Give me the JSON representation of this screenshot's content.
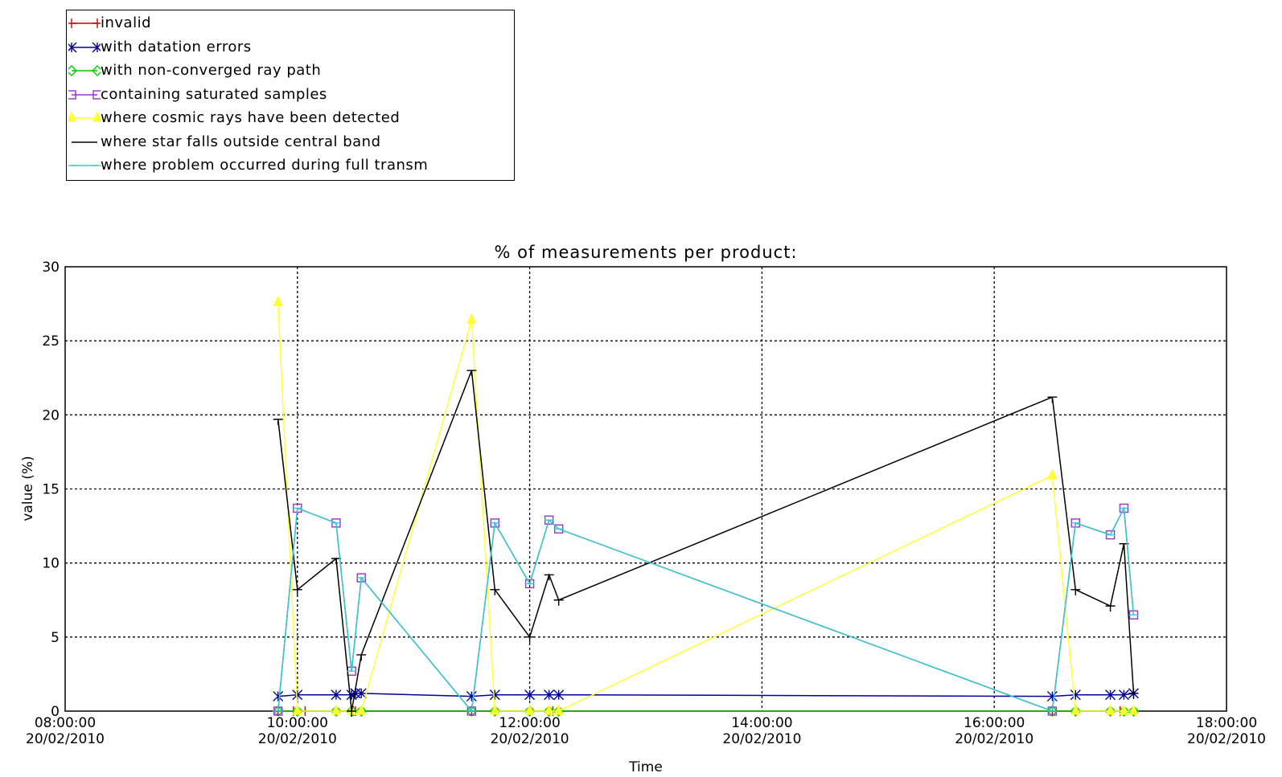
{
  "chart_data": {
    "type": "line",
    "title": "% of measurements per product:",
    "xlabel": "Time",
    "ylabel": "value (%)",
    "ylim": [
      0,
      30
    ],
    "xlim": [
      "20/02/2010 08:00",
      "20/02/2010 18:00"
    ],
    "yticks": [
      "0",
      "5",
      "10",
      "15",
      "20",
      "25",
      "30"
    ],
    "xticks": [
      {
        "time": "08:00:00",
        "date": "20/02/2010"
      },
      {
        "time": "10:00:00",
        "date": "20/02/2010"
      },
      {
        "time": "12:00:00",
        "date": "20/02/2010"
      },
      {
        "time": "14:00:00",
        "date": "20/02/2010"
      },
      {
        "time": "16:00:00",
        "date": "20/02/2010"
      },
      {
        "time": "18:00:00",
        "date": "20/02/2010"
      }
    ],
    "grid": true,
    "legend_position": "top-left",
    "series": [
      {
        "name": "invalid",
        "color": "#cc0000",
        "marker": "plus",
        "points": [
          [
            "09:50",
            0
          ],
          [
            "09:58",
            0
          ],
          [
            "10:00",
            0
          ],
          [
            "10:04",
            0
          ],
          [
            "10:20",
            0
          ],
          [
            "10:28",
            0
          ],
          [
            "10:29",
            0
          ],
          [
            "10:30",
            0
          ],
          [
            "10:33",
            0
          ],
          [
            "11:30",
            0
          ],
          [
            "11:42",
            0
          ],
          [
            "12:00",
            0
          ],
          [
            "12:10",
            0
          ],
          [
            "12:12",
            0
          ],
          [
            "12:15",
            0
          ],
          [
            "16:30",
            0
          ],
          [
            "16:42",
            0
          ],
          [
            "17:00",
            0
          ],
          [
            "17:05",
            0
          ],
          [
            "17:07",
            0
          ],
          [
            "17:12",
            0
          ]
        ]
      },
      {
        "name": "with datation errors",
        "color": "#000099",
        "marker": "x",
        "points": [
          [
            "09:50",
            1.0
          ],
          [
            "10:00",
            1.1
          ],
          [
            "10:20",
            1.1
          ],
          [
            "10:28",
            1.1
          ],
          [
            "10:30",
            1.2
          ],
          [
            "10:33",
            1.2
          ],
          [
            "11:30",
            1.0
          ],
          [
            "11:42",
            1.1
          ],
          [
            "12:00",
            1.1
          ],
          [
            "12:10",
            1.1
          ],
          [
            "12:15",
            1.1
          ],
          [
            "16:30",
            1.0
          ],
          [
            "16:42",
            1.1
          ],
          [
            "17:00",
            1.1
          ],
          [
            "17:07",
            1.1
          ],
          [
            "17:12",
            1.2
          ]
        ]
      },
      {
        "name": "with non-converged ray path",
        "color": "#00cc00",
        "marker": "diamond",
        "points": [
          [
            "09:50",
            0
          ],
          [
            "10:00",
            0
          ],
          [
            "10:20",
            0
          ],
          [
            "10:28",
            0
          ],
          [
            "10:33",
            0
          ],
          [
            "11:30",
            0
          ],
          [
            "11:42",
            0
          ],
          [
            "12:00",
            0
          ],
          [
            "12:10",
            0
          ],
          [
            "12:15",
            0
          ],
          [
            "16:30",
            0
          ],
          [
            "16:42",
            0
          ],
          [
            "17:00",
            0
          ],
          [
            "17:07",
            0
          ],
          [
            "17:12",
            0
          ]
        ]
      },
      {
        "name": "containing saturated samples",
        "color": "#9933cc",
        "marker": "square",
        "points": [
          [
            "09:50",
            0
          ],
          [
            "10:00",
            13.7
          ],
          [
            "10:20",
            12.7
          ],
          [
            "10:28",
            2.7
          ],
          [
            "10:33",
            9.0
          ],
          [
            "11:30",
            0
          ],
          [
            "11:42",
            12.7
          ],
          [
            "12:00",
            8.6
          ],
          [
            "12:10",
            12.9
          ],
          [
            "12:15",
            12.3
          ],
          [
            "16:30",
            0
          ],
          [
            "16:42",
            12.7
          ],
          [
            "17:00",
            11.9
          ],
          [
            "17:07",
            13.7
          ],
          [
            "17:12",
            6.5
          ]
        ]
      },
      {
        "name": "where cosmic rays have been detected",
        "color": "#ffff33",
        "marker": "triangle",
        "points": [
          [
            "09:50",
            27.6
          ],
          [
            "10:00",
            0
          ],
          [
            "10:20",
            0
          ],
          [
            "10:28",
            0
          ],
          [
            "10:33",
            0
          ],
          [
            "11:30",
            26.4
          ],
          [
            "11:42",
            0
          ],
          [
            "12:00",
            0
          ],
          [
            "12:10",
            0
          ],
          [
            "12:15",
            0
          ],
          [
            "16:30",
            15.9
          ],
          [
            "16:42",
            0
          ],
          [
            "17:00",
            0
          ],
          [
            "17:07",
            0
          ],
          [
            "17:12",
            0
          ]
        ]
      },
      {
        "name": "where star falls outside central band",
        "color": "#000000",
        "marker": "tbar",
        "points": [
          [
            "09:50",
            19.7
          ],
          [
            "10:00",
            8.2
          ],
          [
            "10:20",
            10.3
          ],
          [
            "10:28",
            0
          ],
          [
            "10:33",
            3.8
          ],
          [
            "11:30",
            23.0
          ],
          [
            "11:42",
            8.2
          ],
          [
            "12:00",
            5.0
          ],
          [
            "12:10",
            9.2
          ],
          [
            "12:15",
            7.5
          ],
          [
            "16:30",
            21.2
          ],
          [
            "16:42",
            8.2
          ],
          [
            "17:00",
            7.1
          ],
          [
            "17:07",
            11.3
          ],
          [
            "17:12",
            1.2
          ]
        ]
      },
      {
        "name": "where problem occurred during full transm",
        "color": "#33cccc",
        "marker": "tick",
        "points": [
          [
            "09:50",
            0
          ],
          [
            "10:00",
            13.7
          ],
          [
            "10:20",
            12.7
          ],
          [
            "10:28",
            2.7
          ],
          [
            "10:33",
            9.0
          ],
          [
            "11:30",
            0
          ],
          [
            "11:42",
            12.7
          ],
          [
            "12:00",
            8.6
          ],
          [
            "12:10",
            12.9
          ],
          [
            "12:15",
            12.3
          ],
          [
            "16:30",
            0
          ],
          [
            "16:42",
            12.7
          ],
          [
            "17:00",
            11.9
          ],
          [
            "17:07",
            13.7
          ],
          [
            "17:12",
            6.5
          ]
        ]
      }
    ]
  }
}
